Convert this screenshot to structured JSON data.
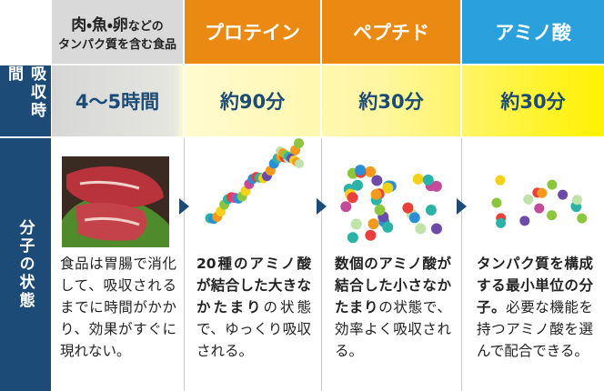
{
  "header": {
    "columns": [
      {
        "title_bold": "肉・魚・卵",
        "title_rest": "などの",
        "subtitle": "タンパク質を含む食品"
      },
      {
        "title": "プロテイン"
      },
      {
        "title": "ペプチド"
      },
      {
        "title": "アミノ酸"
      }
    ]
  },
  "rows": [
    {
      "label": "吸収時間",
      "values": [
        "4〜5時間",
        "約90分",
        "約30分",
        "約30分"
      ]
    },
    {
      "label": "分子の状態",
      "descriptions": [
        [
          {
            "text": "食品は胃腸で消化して、吸収されるまでに時間がかかり、効果がすぐに現れない。",
            "bold": false
          }
        ],
        [
          {
            "text": "20種のアミノ酸が結合した大きなかたまり",
            "bold": true
          },
          {
            "text": "の状態で、ゆっくり吸収される。",
            "bold": false
          }
        ],
        [
          {
            "text": "数個のアミノ酸が結合した小さなかたまり",
            "bold": true
          },
          {
            "text": "の状態で、効率よく吸収される。",
            "bold": false
          }
        ],
        [
          {
            "text": "タンパク質を構成する最小単位の分子。",
            "bold": true
          },
          {
            "text": "必要な機能を持つアミノ酸を選んで配合できる。",
            "bold": false
          }
        ]
      ]
    }
  ]
}
